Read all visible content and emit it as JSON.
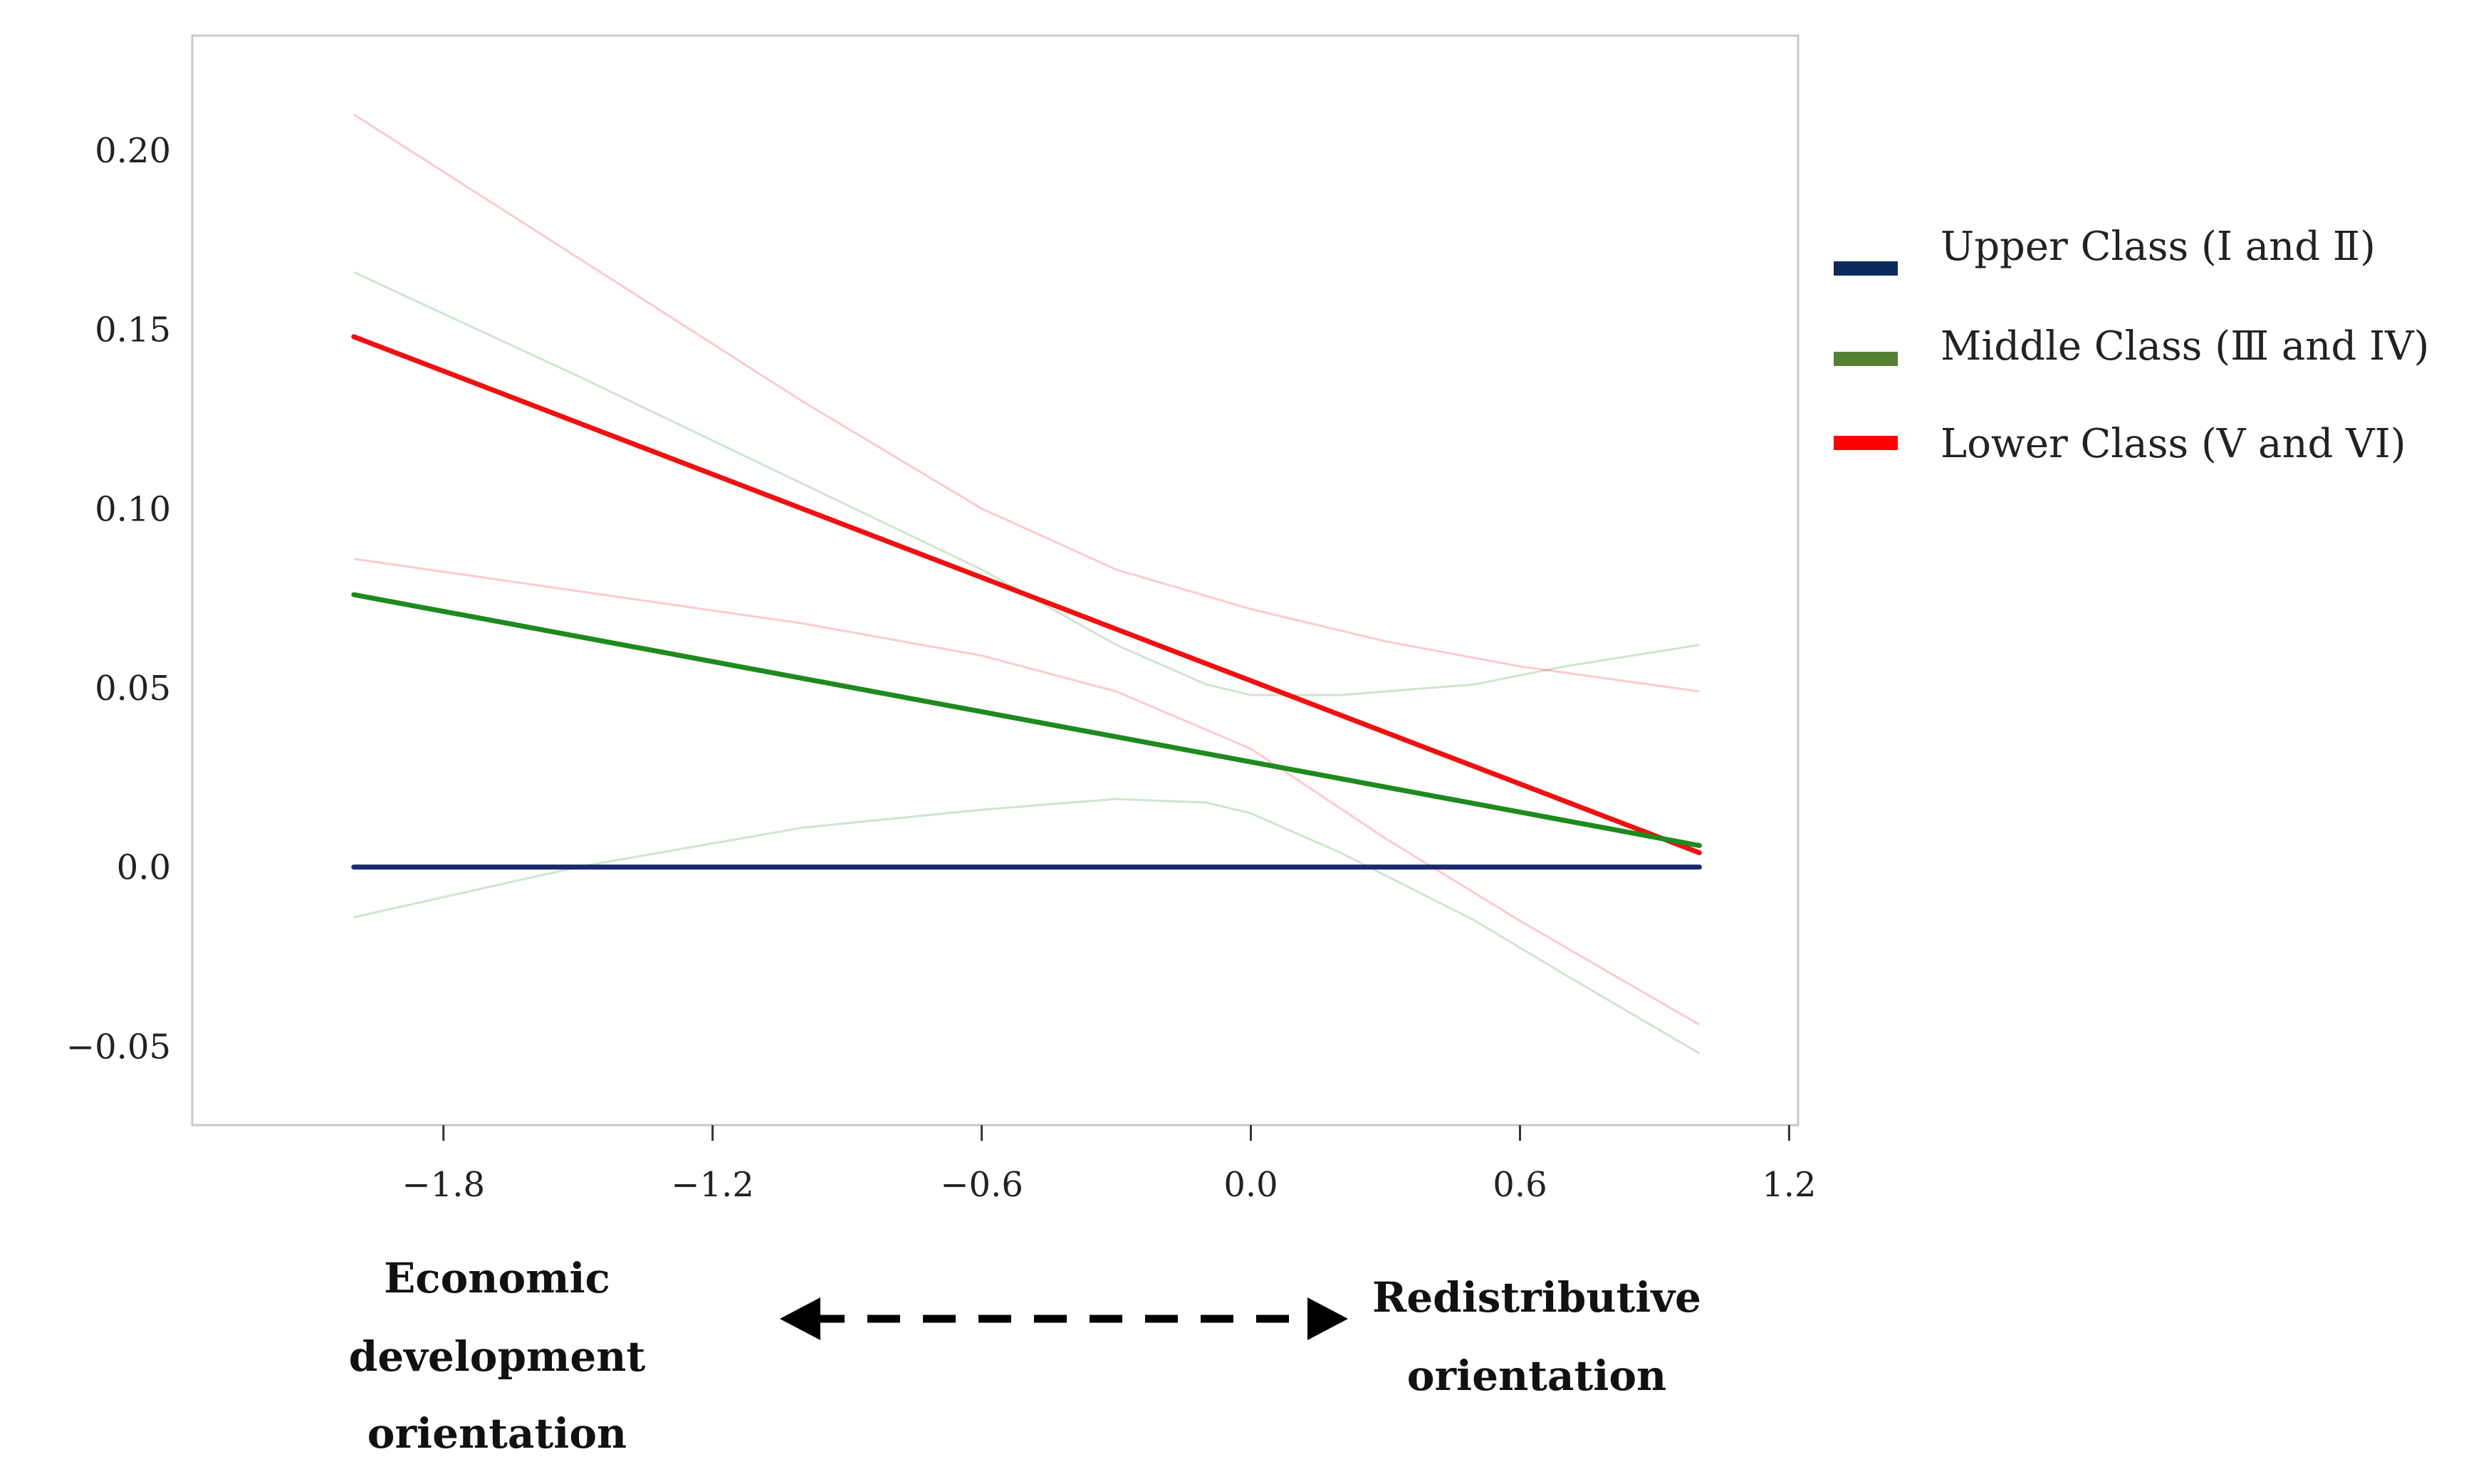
{
  "chart_data": {
    "type": "line",
    "title": "",
    "xlabel": "",
    "ylabel": "",
    "xlim": [
      -2.36,
      1.22
    ],
    "ylim": [
      -0.072,
      0.232
    ],
    "x_ticks": [
      -1.8,
      -1.2,
      -0.6,
      0.0,
      0.6,
      1.2
    ],
    "x_tick_labels": [
      "−1.8",
      "−1.2",
      "−0.6",
      "0.0",
      "0.6",
      "1.2"
    ],
    "y_ticks": [
      0.2,
      0.15,
      0.1,
      0.05,
      0.0,
      -0.05
    ],
    "y_tick_labels": [
      "0.20",
      "0.15",
      "0.10",
      "0.05",
      "0.0",
      "−0.05"
    ],
    "legend_position": "right",
    "series": [
      {
        "name": "Upper Class (I and Ⅱ)",
        "color": "#1a2a6c",
        "legend_color": "#0d2a5e",
        "x": [
          -2.0,
          1.0
        ],
        "y": [
          0.0,
          0.0
        ]
      },
      {
        "name": "Middle Class (Ⅲ and IV)",
        "color": "#1e8a1e",
        "legend_color": "#548235",
        "x": [
          -2.0,
          1.0
        ],
        "y": [
          0.076,
          0.006
        ],
        "ci_upper": {
          "x": [
            -2.0,
            -1.5,
            -1.0,
            -0.6,
            -0.3,
            -0.1,
            0.0,
            0.2,
            0.5,
            0.7,
            1.0
          ],
          "y": [
            0.166,
            0.137,
            0.107,
            0.083,
            0.062,
            0.051,
            0.048,
            0.048,
            0.051,
            0.056,
            0.062
          ]
        },
        "ci_lower": {
          "x": [
            -2.0,
            -1.5,
            -1.0,
            -0.6,
            -0.3,
            -0.1,
            0.0,
            0.2,
            0.5,
            0.7,
            1.0
          ],
          "y": [
            -0.014,
            0.0,
            0.011,
            0.016,
            0.019,
            0.018,
            0.015,
            0.004,
            -0.015,
            -0.03,
            -0.052
          ]
        }
      },
      {
        "name": "Lower Class (V and VI)",
        "color": "#ee1111",
        "legend_color": "#ff0000",
        "x": [
          -2.0,
          1.0
        ],
        "y": [
          0.148,
          0.004
        ],
        "ci_upper": {
          "x": [
            -2.0,
            -1.5,
            -1.0,
            -0.6,
            -0.3,
            0.0,
            0.3,
            0.6,
            1.0
          ],
          "y": [
            0.21,
            0.17,
            0.13,
            0.1,
            0.083,
            0.072,
            0.063,
            0.056,
            0.049
          ]
        },
        "ci_lower": {
          "x": [
            -2.0,
            -1.5,
            -1.0,
            -0.6,
            -0.3,
            0.0,
            0.3,
            0.6,
            1.0
          ],
          "y": [
            0.086,
            0.077,
            0.068,
            0.059,
            0.049,
            0.033,
            0.008,
            -0.015,
            -0.044
          ]
        }
      }
    ],
    "footer": {
      "left_label_lines": [
        "Economic",
        "development",
        "orientation"
      ],
      "right_label_lines": [
        "Redistributive",
        "orientation"
      ],
      "arrow": "double-headed dashed"
    }
  }
}
